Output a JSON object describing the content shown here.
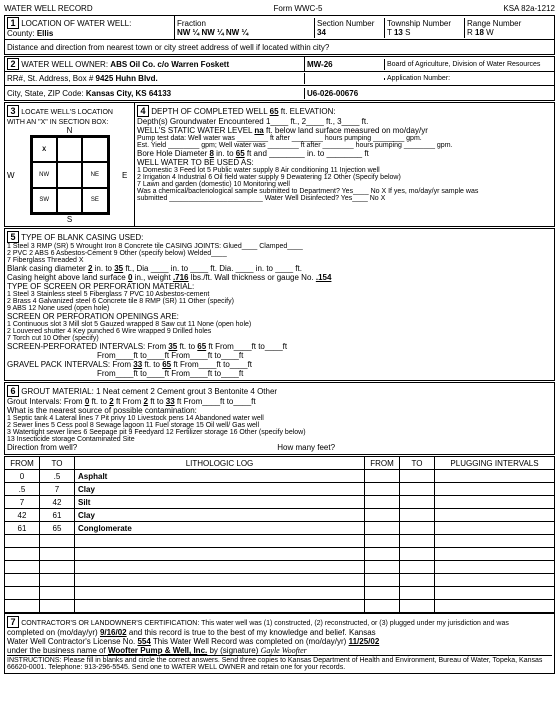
{
  "header": {
    "title": "WATER WELL RECORD",
    "form": "Form WWC-5",
    "ksa": "KSA 82a-1212"
  },
  "s1": {
    "title": "LOCATION OF WATER WELL:",
    "county_lbl": "County:",
    "county": "Ellis",
    "frac_lbl": "Fraction",
    "frac": "NW ¼  NW ¼  NW ¼",
    "sec_lbl": "Section Number",
    "sec": "34",
    "town_lbl": "Township Number",
    "town": "13",
    "town_dir": "S",
    "range_lbl": "Range Number",
    "range": "18",
    "range_dir": "W",
    "dist": "Distance and direction from nearest town or city street address of well if located within city?"
  },
  "s2": {
    "title": "WATER WELL OWNER:",
    "owner": "ABS Oil Co.   c/o Warren Foskett",
    "addr_lbl": "RR#, St. Address, Box #",
    "addr": "9425 Huhn Blvd.",
    "city_lbl": "City, State, ZIP Code:",
    "city": "Kansas City, KS  64133",
    "well_id": "MW-26",
    "app": "U6-026-00676",
    "board": "Board of Agriculture, Division of Water Resources",
    "app_lbl": "Application Number:"
  },
  "s3": {
    "title": "LOCATE WELL'S LOCATION WITH AN \"X\" IN SECTION BOX:",
    "n": "N",
    "s": "S",
    "e": "E",
    "w": "W",
    "x": "X",
    "nw": "NW",
    "ne": "NE",
    "sw": "SW",
    "se": "SE"
  },
  "s4": {
    "depth_lbl": "DEPTH OF COMPLETED WELL",
    "depth": "65",
    "elev_lbl": "ft.  ELEVATION:",
    "gw": "Depth(s) Groundwater Encountered",
    "gw1": "1",
    "gw2": "2",
    "gw3": "3",
    "static_lbl": "WELL'S STATIC WATER LEVEL",
    "static": "na",
    "static_txt": "ft. below land surface measured on mo/day/yr",
    "pump": "Pump test data:  Well water was ________ ft after ________ hours pumping ________ gpm.",
    "yield": "Est. Yield ________ gpm;  Well water was ________ ft after ________ hours pumping ________ gpm.",
    "bore_lbl": "Bore Hole Diameter",
    "bore_d": "8",
    "bore_to": "in. to",
    "bore_ft": "65",
    "bore_and": "ft and ________ in. to ________ ft",
    "use_lbl": "WELL WATER TO BE USED AS:",
    "uses": "1  Domestic   3  Feed lot   5  Public water supply   8  Air conditioning   11  Injection well\n2  Irrigation   4  Industrial   6  Oil field water supply   9  Dewatering   12  Other (Specify below)\n                                7  Lawn and garden (domestic)   10  Monitoring well",
    "chem": "Was a chemical/bacteriological sample submitted to Department?  Yes____ No  X   If yes, mo/day/yr sample was",
    "sub": "submitted ________________________",
    "disinf": "Water Well Disinfected?  Yes____   No   X"
  },
  "s5": {
    "title": "TYPE OF BLANK CASING USED:",
    "opts": "1  Steel   3  RMP (SR)   5  Wrought Iron   8  Concrete tile   CASING JOINTS:  Glued____  Clamped____\n2  PVC   2  ABS   6  Asbestos-Cement   9  Other (specify below)   Welded____\n                  7  Fiberglass                                    Threaded    X",
    "blank": "Blank casing diameter",
    "bd": "2",
    "bto": "in. to",
    "bft": "35",
    "bdia": "ft., Dia ____ in. to ____ ft.  Dia. ____ in. to ____ ft.",
    "casing": "Casing height above land surface",
    "ch": "0",
    "chwt": "in., weight",
    "wt": ".716",
    "wtlbs": "lbs./ft.  Wall thickness or gauge No.",
    "gauge": ".154",
    "screen_lbl": "TYPE OF SCREEN OR PERFORATION MATERIAL:",
    "screen_opts": "1  Steel   3  Stainless steel   5  Fiberglass   7  PVC   10  Asbestos-cement\n2  Brass   4  Galvanized steel   6  Concrete tile   8  RMP (SR)   11  Other (specify)\n                                                    9  ABS   12  None used (open hole)",
    "perf_lbl": "SCREEN OR PERFORATION OPENINGS ARE:",
    "perf_opts": "1  Continuous slot   3  Mill slot   5  Gauzed wrapped   8  Saw cut   11  None (open hole)\n2  Louvered shutter   4  Key punched   6  Wire wrapped   9  Drilled holes\n                                       7  Torch cut   10  Other (specify)",
    "sp_lbl": "SCREEN-PERFORATED INTERVALS:",
    "sp_from": "35",
    "sp_to": "65",
    "gp_lbl": "GRAVEL PACK INTERVALS:",
    "gp_from": "33",
    "gp_to": "65"
  },
  "s6": {
    "title": "GROUT MATERIAL:",
    "opts": "1  Neat cement   2  Cement grout   3  Bentonite   4  Other",
    "gi": "Grout Intervals:  From",
    "gi_f1": "0",
    "gi_t1": "2",
    "gi_f2": "2",
    "gi_t2": "33",
    "near": "What is the nearest source of possible contamination:",
    "near_opts": "1  Septic tank   4  Lateral lines   7  Pit privy   10  Livestock pens   14  Abandoned water well\n2  Sewer lines   5  Cess pool   8  Sewage lagoon   11  Fuel storage   15  Oil well/ Gas well\n3  Watertight sewer lines   6  Seepage pit   9  Feedyard   12  Fertilizer storage   16  Other (specify below)\n                                                            13  Insecticide storage   Contaminated Site",
    "dir": "Direction from well?",
    "feet": "How many feet?"
  },
  "litho": {
    "headers": [
      "FROM",
      "TO",
      "LITHOLOGIC LOG",
      "FROM",
      "TO",
      "PLUGGING INTERVALS"
    ],
    "rows": [
      [
        "0",
        ".5",
        "Asphalt",
        "",
        "",
        ""
      ],
      [
        ".5",
        "7",
        "Clay",
        "",
        "",
        ""
      ],
      [
        "7",
        "42",
        "Silt",
        "",
        "",
        ""
      ],
      [
        "42",
        "61",
        "Clay",
        "",
        "",
        ""
      ],
      [
        "61",
        "65",
        "Conglomerate",
        "",
        "",
        ""
      ],
      [
        "",
        "",
        "",
        "",
        "",
        ""
      ],
      [
        "",
        "",
        "",
        "",
        "",
        ""
      ],
      [
        "",
        "",
        "",
        "",
        "",
        ""
      ],
      [
        "",
        "",
        "",
        "",
        "",
        ""
      ],
      [
        "",
        "",
        "",
        "",
        "",
        ""
      ],
      [
        "",
        "",
        "",
        "",
        "",
        ""
      ]
    ]
  },
  "s7": {
    "title": "CONTRACTOR'S OR LANDOWNER'S CERTIFICATION: This water well was (1) constructed, (2) reconstructed, or (3) plugged under my jurisdiction and was",
    "comp_lbl": "completed on (mo/day/yr)",
    "comp": "9/16/02",
    "rec": "and this record is true to the best of my knowledge and belief. Kansas",
    "lic_lbl": "Water Well Contractor's License No.",
    "lic": "554",
    "rec2": "This Water Well Record was completed on (mo/day/yr)",
    "date2": "11/25/02",
    "bus_lbl": "under the business name of",
    "bus": "Woofter Pump & Well, Inc.",
    "sig": "by (signature)",
    "instr": "INSTRUCTIONS:  Please fill in blanks and circle the correct answers.  Send three copies to Kansas Department of Health and Environment, Bureau of Water, Topeka, Kansas 66620-0001.  Telephone:  913-296-5545.  Send one to WATER WELL OWNER and retain one for your records."
  }
}
